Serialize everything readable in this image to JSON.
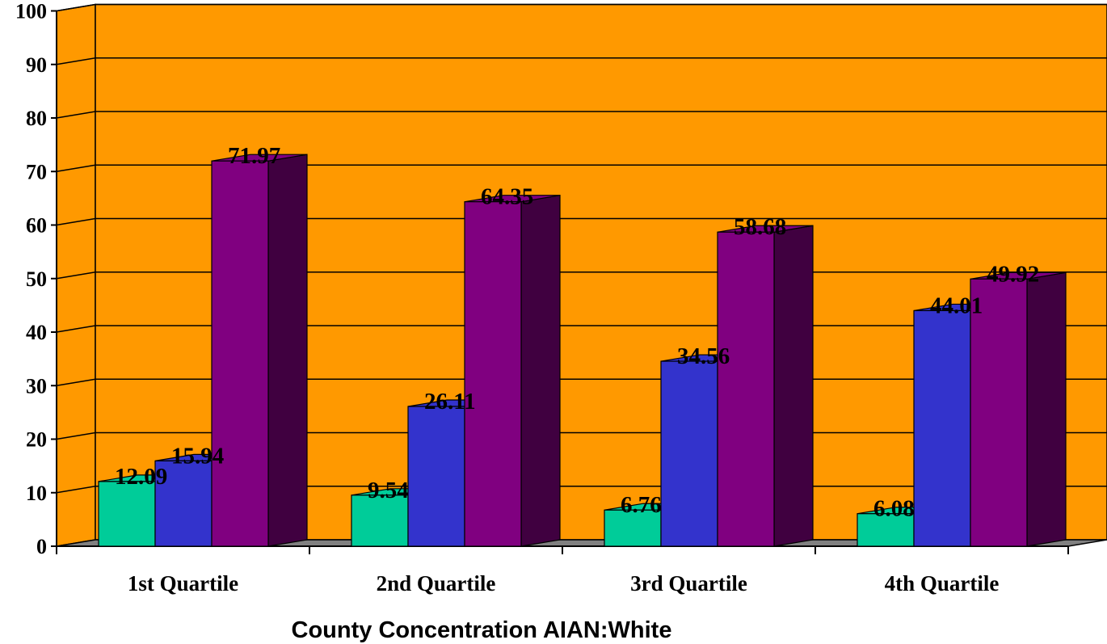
{
  "chart_data": {
    "type": "bar",
    "xlabel": "County Concentration AIAN:White",
    "ylabel": "",
    "categories": [
      "1st Quartile",
      "2nd Quartile",
      "3rd Quartile",
      "4th Quartile"
    ],
    "series": [
      {
        "values": [
          12.09,
          9.54,
          6.76,
          6.08
        ],
        "color": "#00CC99"
      },
      {
        "values": [
          15.94,
          26.11,
          34.56,
          44.01
        ],
        "color": "#3333CC"
      },
      {
        "values": [
          71.97,
          64.35,
          58.68,
          49.92
        ],
        "color": "#800080"
      }
    ],
    "data_labels": [
      [
        "12.09",
        "15.94",
        "71.97"
      ],
      [
        "9.54",
        "26.11",
        "64.35"
      ],
      [
        "6.76",
        "34.56",
        "58.68"
      ],
      [
        "6.08",
        "44.01",
        "49.92"
      ]
    ],
    "ylim": [
      0,
      100
    ],
    "yticks": [
      0,
      10,
      20,
      30,
      40,
      50,
      60,
      70,
      80,
      90,
      100
    ],
    "grid": true,
    "legend": "none",
    "style": "3d",
    "colors": {
      "wall": "#FF9900",
      "floor": "#808080",
      "side_shade": [
        "#009973",
        "#262699",
        "#400040"
      ]
    }
  }
}
